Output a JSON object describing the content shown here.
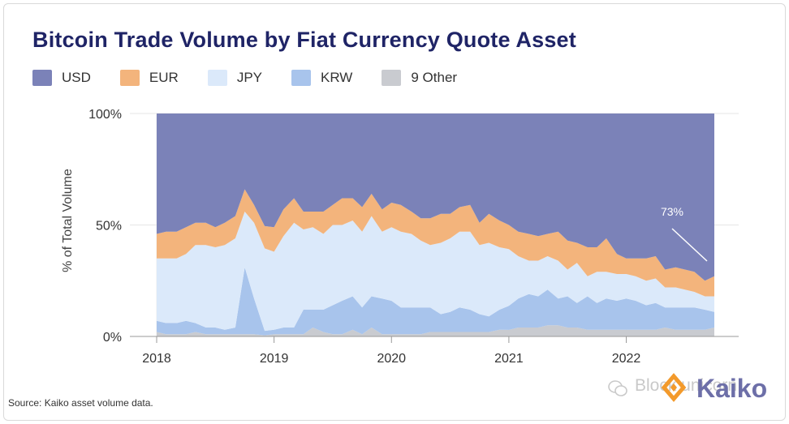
{
  "title": "Bitcoin Trade Volume by Fiat Currency Quote Asset",
  "source": "Source: Kaiko asset volume data.",
  "watermark": "Block unicorn",
  "logo_text": "Kaiko",
  "chart_data": {
    "type": "area",
    "stacked": true,
    "normalized": true,
    "title": "Bitcoin Trade Volume by Fiat Currency Quote Asset",
    "ylabel": "% of Total Volume",
    "xlabel": "",
    "ylim": [
      0,
      100
    ],
    "yticks": [
      "0%",
      "50%",
      "100%"
    ],
    "xticks": [
      "2018",
      "2019",
      "2020",
      "2021",
      "2022"
    ],
    "xlim": [
      2018.0,
      2022.75
    ],
    "grid": true,
    "legend_position": "top-left",
    "annotation": {
      "text": "73%",
      "series": "USD"
    },
    "x": [
      2018.0,
      2018.08,
      2018.17,
      2018.25,
      2018.33,
      2018.42,
      2018.5,
      2018.58,
      2018.67,
      2018.75,
      2018.83,
      2018.92,
      2019.0,
      2019.08,
      2019.17,
      2019.25,
      2019.33,
      2019.42,
      2019.5,
      2019.58,
      2019.67,
      2019.75,
      2019.83,
      2019.92,
      2020.0,
      2020.08,
      2020.17,
      2020.25,
      2020.33,
      2020.42,
      2020.5,
      2020.58,
      2020.67,
      2020.75,
      2020.83,
      2020.92,
      2021.0,
      2021.08,
      2021.17,
      2021.25,
      2021.33,
      2021.42,
      2021.5,
      2021.58,
      2021.67,
      2021.75,
      2021.83,
      2021.92,
      2022.0,
      2022.08,
      2022.17,
      2022.25,
      2022.33,
      2022.42,
      2022.5,
      2022.58,
      2022.67,
      2022.75
    ],
    "series": [
      {
        "name": "9 Other",
        "color": "#c9cbd0",
        "values": [
          2,
          1,
          1,
          1,
          2,
          1,
          1,
          1,
          1,
          1,
          1,
          0.5,
          1,
          1,
          1,
          1,
          4,
          2,
          1,
          1,
          3,
          1,
          4,
          1,
          1,
          1,
          1,
          1,
          2,
          2,
          2,
          2,
          2,
          2,
          2,
          3,
          3,
          4,
          4,
          4,
          5,
          5,
          4,
          4,
          3,
          3,
          3,
          3,
          3,
          3,
          3,
          3,
          4,
          3,
          3,
          3,
          3,
          4
        ]
      },
      {
        "name": "KRW",
        "color": "#a8c4ec",
        "values": [
          5,
          5,
          5,
          6,
          4,
          3,
          3,
          2,
          3,
          30,
          16,
          2,
          2,
          3,
          3,
          11,
          8,
          10,
          13,
          15,
          15,
          12,
          14,
          16,
          15,
          12,
          12,
          12,
          11,
          8,
          9,
          11,
          10,
          8,
          7,
          9,
          11,
          13,
          15,
          14,
          16,
          12,
          14,
          11,
          15,
          12,
          14,
          13,
          14,
          13,
          11,
          12,
          9,
          10,
          10,
          10,
          9,
          7
        ]
      },
      {
        "name": "JPY",
        "color": "#dbe9fa",
        "values": [
          28,
          29,
          29,
          30,
          35,
          37,
          36,
          38,
          40,
          25,
          34,
          37,
          35,
          41,
          47,
          36,
          37,
          34,
          36,
          34,
          34,
          34,
          36,
          30,
          33,
          34,
          33,
          30,
          28,
          32,
          33,
          34,
          35,
          31,
          33,
          28,
          26,
          19,
          15,
          16,
          15,
          17,
          12,
          18,
          9,
          14,
          12,
          12,
          11,
          11,
          11,
          11,
          9,
          9,
          8,
          7,
          6,
          7
        ]
      },
      {
        "name": "EUR",
        "color": "#f3b47c",
        "values": [
          11,
          12,
          12,
          12,
          10,
          10,
          9,
          10,
          10,
          10,
          8,
          10,
          11,
          12,
          11,
          8,
          7,
          10,
          9,
          12,
          10,
          11,
          10,
          10,
          11,
          12,
          10,
          10,
          12,
          13,
          11,
          11,
          12,
          10,
          13,
          12,
          11,
          11,
          12,
          11,
          10,
          13,
          13,
          9,
          13,
          11,
          15,
          9,
          7,
          8,
          10,
          10,
          8,
          9,
          9,
          9,
          7,
          9
        ]
      },
      {
        "name": "USD",
        "color": "#7b82b8",
        "values": [
          54,
          53,
          53,
          51,
          49,
          49,
          51,
          49,
          46,
          34,
          41,
          50.5,
          51,
          43,
          38,
          44,
          44,
          44,
          41,
          38,
          38,
          42,
          36,
          43,
          40,
          41,
          44,
          47,
          47,
          45,
          45,
          42,
          41,
          49,
          45,
          48,
          51,
          53,
          54,
          55,
          54,
          53,
          57,
          58,
          60,
          60,
          56,
          63,
          65,
          65,
          65,
          64,
          70,
          69,
          70,
          71,
          75,
          73
        ]
      }
    ]
  }
}
